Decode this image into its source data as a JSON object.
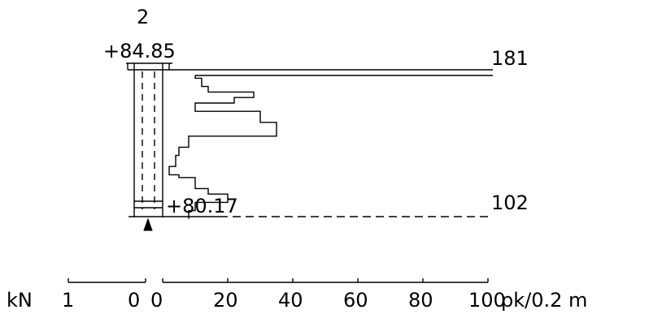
{
  "diagram": {
    "point_number": "2",
    "ground_level_label": "+84.85",
    "bottom_level_label": "+80.17",
    "right_top_value": "181",
    "right_bottom_value": "102",
    "left_scale": {
      "unit": "kN",
      "ticks": [
        "1",
        "0"
      ]
    },
    "right_scale": {
      "ticks": [
        "0",
        "20",
        "40",
        "60",
        "80",
        "100"
      ],
      "unit": "pk/0.2 m"
    },
    "profile_values": [
      10,
      12,
      12,
      12,
      14,
      14,
      28,
      28,
      22,
      22,
      10,
      10,
      10,
      30,
      30,
      30,
      30,
      35,
      35,
      35,
      35,
      35,
      8,
      8,
      8,
      8,
      5,
      5,
      5,
      4,
      4,
      4,
      4,
      2,
      2,
      2,
      5,
      10,
      10,
      10,
      10,
      14,
      14,
      20,
      20,
      20,
      10,
      10,
      10,
      8,
      8,
      8
    ]
  },
  "colors": {
    "line": "#000000",
    "background": "#ffffff"
  }
}
